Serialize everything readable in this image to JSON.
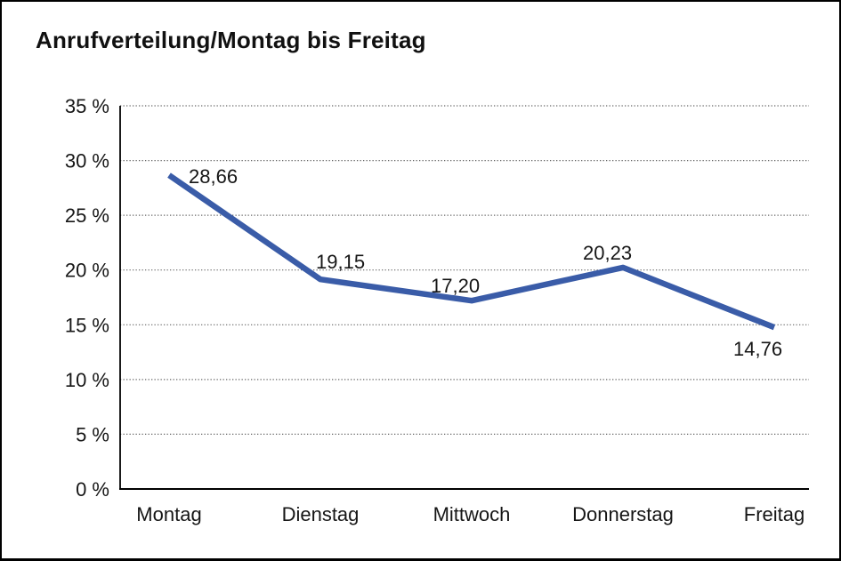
{
  "chart_data": {
    "type": "line",
    "title": "Anrufverteilung/Montag bis Freitag",
    "categories": [
      "Montag",
      "Dienstag",
      "Mittwoch",
      "Donnerstag",
      "Freitag"
    ],
    "values": [
      28.66,
      19.15,
      17.2,
      20.23,
      14.76
    ],
    "value_labels": [
      "28,66",
      "19,15",
      "17,20",
      "20,23",
      "14,76"
    ],
    "xlabel": "",
    "ylabel": "",
    "ylim": [
      0,
      35
    ],
    "ytick_step": 5,
    "ytick_labels": [
      "0 %",
      "5 %",
      "10 %",
      "15 %",
      "20 %",
      "25 %",
      "30 %",
      "35 %"
    ],
    "grid": "horizontal-dotted",
    "legend": "none",
    "series_name": "Anrufverteilung"
  },
  "colors": {
    "line": "#3a5ca8",
    "grid_dots": "#666666",
    "axis": "#000000",
    "text": "#161616",
    "background": "#ffffff",
    "border": "#000000"
  }
}
